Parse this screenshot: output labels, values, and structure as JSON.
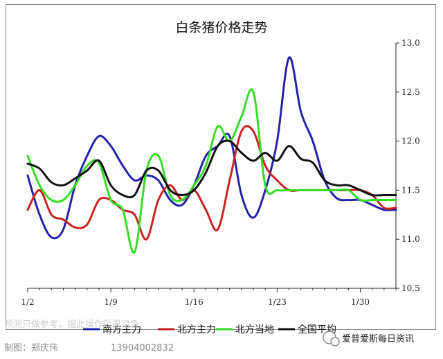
{
  "chart_data": {
    "type": "line",
    "title": "白条猪价格走势",
    "x_tick_labels": [
      "1/2",
      "1/9",
      "1/16",
      "1/23",
      "1/30"
    ],
    "ylim": [
      10.5,
      13.0
    ],
    "y_ticks": [
      "10.5",
      "11.0",
      "11.5",
      "12.0",
      "12.5",
      "13.0"
    ],
    "x": [
      0,
      1,
      2,
      3,
      4,
      5,
      6,
      7,
      8,
      9,
      10,
      11,
      12,
      13,
      14,
      15,
      16,
      17,
      18,
      19,
      20,
      21,
      22,
      23,
      24,
      25,
      26,
      27,
      28,
      29,
      30,
      31
    ],
    "series": [
      {
        "name": "南方主力",
        "color": "#2222aa",
        "values": [
          11.65,
          11.25,
          11.02,
          11.1,
          11.55,
          11.85,
          12.05,
          11.95,
          11.75,
          11.6,
          11.65,
          11.6,
          11.4,
          11.35,
          11.55,
          11.85,
          11.95,
          12.05,
          11.45,
          11.22,
          11.5,
          12.0,
          12.85,
          12.3,
          12.0,
          11.6,
          11.42,
          11.4,
          11.4,
          11.35,
          11.3,
          11.3
        ]
      },
      {
        "name": "北方主力",
        "color": "#cc2222",
        "values": [
          11.3,
          11.5,
          11.25,
          11.2,
          11.12,
          11.15,
          11.4,
          11.4,
          11.3,
          11.25,
          11.0,
          11.4,
          11.55,
          11.4,
          11.5,
          11.3,
          11.1,
          11.6,
          12.1,
          12.1,
          11.75,
          11.6,
          11.5,
          11.5,
          11.5,
          11.5,
          11.5,
          11.5,
          11.5,
          11.45,
          11.32,
          11.32
        ]
      },
      {
        "name": "北方当地",
        "color": "#33dd22",
        "values": [
          11.85,
          11.55,
          11.4,
          11.4,
          11.55,
          11.75,
          11.78,
          11.4,
          11.3,
          10.87,
          11.7,
          11.85,
          11.45,
          11.4,
          11.55,
          11.75,
          12.15,
          12.0,
          12.25,
          12.5,
          11.55,
          11.5,
          11.5,
          11.5,
          11.5,
          11.5,
          11.5,
          11.5,
          11.4,
          11.4,
          11.4,
          11.4
        ]
      },
      {
        "name": "全国平均",
        "color": "#111111",
        "values": [
          11.77,
          11.72,
          11.58,
          11.55,
          11.62,
          11.7,
          11.8,
          11.55,
          11.45,
          11.45,
          11.7,
          11.7,
          11.5,
          11.45,
          11.5,
          11.68,
          11.95,
          12.0,
          11.88,
          11.8,
          11.88,
          11.8,
          11.95,
          11.82,
          11.78,
          11.6,
          11.55,
          11.55,
          11.5,
          11.45,
          11.45,
          11.45
        ]
      }
    ],
    "legend_position": "bottom",
    "grid": false
  },
  "watermark": {
    "line1": "预测只做参考，据此操作后果自负",
    "line2": "制图：郑庆伟",
    "phone": "13904002832",
    "brand": "爱普爱斯每日资讯"
  }
}
